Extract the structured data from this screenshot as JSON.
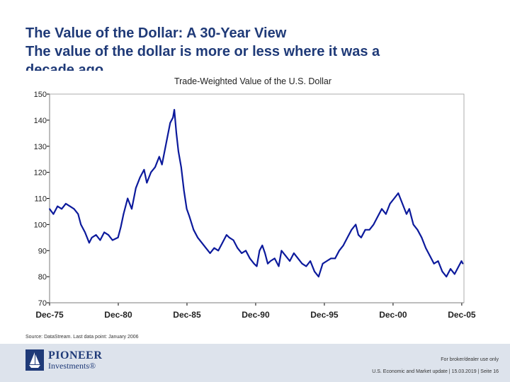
{
  "slide": {
    "title_line1": "The Value of the Dollar: A 30-Year View",
    "title_line2": "The value of the dollar is more or less where it was a",
    "title_line3": "decade ago",
    "source": "Source: DataStream. Last data point: January 2006"
  },
  "footer": {
    "brand_name": "PIONEER",
    "brand_sub": "Investments®",
    "disclaimer": "For broker/dealer use only",
    "meta": "U.S. Economic and Market update | 15.03.2019 | Seite 16"
  },
  "colors": {
    "title": "#1f3a78",
    "series": "#0c1a9c",
    "axis": "#000000",
    "plot_border": "#9a9a9a",
    "footer_bg": "#dde3ec"
  },
  "chart_data": {
    "type": "line",
    "title": "Trade-Weighted Value of the U.S. Dollar",
    "xlabel": "",
    "ylabel": "",
    "xlim": [
      1975.92,
      2006.08
    ],
    "ylim": [
      70,
      150
    ],
    "yticks": [
      70,
      80,
      90,
      100,
      110,
      120,
      130,
      140,
      150
    ],
    "xticks": [
      {
        "label": "Dec-75",
        "x": 1975.92
      },
      {
        "label": "Dec-80",
        "x": 1980.92
      },
      {
        "label": "Dec-85",
        "x": 1985.92
      },
      {
        "label": "Dec-90",
        "x": 1990.92
      },
      {
        "label": "Dec-95",
        "x": 1995.92
      },
      {
        "label": "Dec-00",
        "x": 2000.92
      },
      {
        "label": "Dec-05",
        "x": 2005.92
      }
    ],
    "grid": false,
    "legend": "none",
    "series": [
      {
        "name": "Trade-Weighted Value of the U.S. Dollar",
        "x": [
          1975.92,
          1976.2,
          1976.5,
          1976.8,
          1977.1,
          1977.4,
          1977.7,
          1978.0,
          1978.2,
          1978.5,
          1978.8,
          1979.0,
          1979.3,
          1979.6,
          1979.9,
          1980.2,
          1980.5,
          1980.9,
          1981.1,
          1981.3,
          1981.6,
          1981.9,
          1982.2,
          1982.5,
          1982.8,
          1983.0,
          1983.3,
          1983.6,
          1983.9,
          1984.1,
          1984.4,
          1984.7,
          1984.9,
          1985.0,
          1985.15,
          1985.3,
          1985.5,
          1985.7,
          1985.9,
          1986.1,
          1986.4,
          1986.7,
          1987.0,
          1987.3,
          1987.6,
          1987.9,
          1988.2,
          1988.5,
          1988.8,
          1989.0,
          1989.3,
          1989.6,
          1989.9,
          1990.2,
          1990.5,
          1990.8,
          1991.0,
          1991.2,
          1991.4,
          1991.6,
          1991.8,
          1992.0,
          1992.3,
          1992.6,
          1992.8,
          1993.1,
          1993.4,
          1993.7,
          1994.0,
          1994.3,
          1994.6,
          1994.9,
          1995.2,
          1995.5,
          1995.8,
          1996.1,
          1996.4,
          1996.7,
          1997.0,
          1997.3,
          1997.6,
          1997.9,
          1998.2,
          1998.4,
          1998.6,
          1998.9,
          1999.2,
          1999.5,
          1999.8,
          2000.1,
          2000.4,
          2000.7,
          2001.0,
          2001.3,
          2001.6,
          2001.9,
          2002.1,
          2002.4,
          2002.7,
          2003.0,
          2003.3,
          2003.6,
          2003.9,
          2004.2,
          2004.5,
          2004.8,
          2005.1,
          2005.4,
          2005.7,
          2005.9,
          2006.0
        ],
        "values": [
          106,
          104,
          107,
          106,
          108,
          107,
          106,
          104,
          100,
          97,
          93,
          95,
          96,
          94,
          97,
          96,
          94,
          95,
          99,
          104,
          110,
          106,
          114,
          118,
          121,
          116,
          120,
          122,
          126,
          123,
          131,
          139,
          141,
          144,
          135,
          128,
          122,
          113,
          106,
          103,
          98,
          95,
          93,
          91,
          89,
          91,
          90,
          93,
          96,
          95,
          94,
          91,
          89,
          90,
          87,
          85,
          84,
          90,
          92,
          89,
          85,
          86,
          87,
          84,
          90,
          88,
          86,
          89,
          87,
          85,
          84,
          86,
          82,
          80,
          85,
          86,
          87,
          87,
          90,
          92,
          95,
          98,
          100,
          96,
          95,
          98,
          98,
          100,
          103,
          106,
          104,
          108,
          110,
          112,
          108,
          104,
          106,
          100,
          98,
          95,
          91,
          88,
          85,
          86,
          82,
          80,
          83,
          81,
          84,
          86,
          85
        ]
      }
    ]
  }
}
